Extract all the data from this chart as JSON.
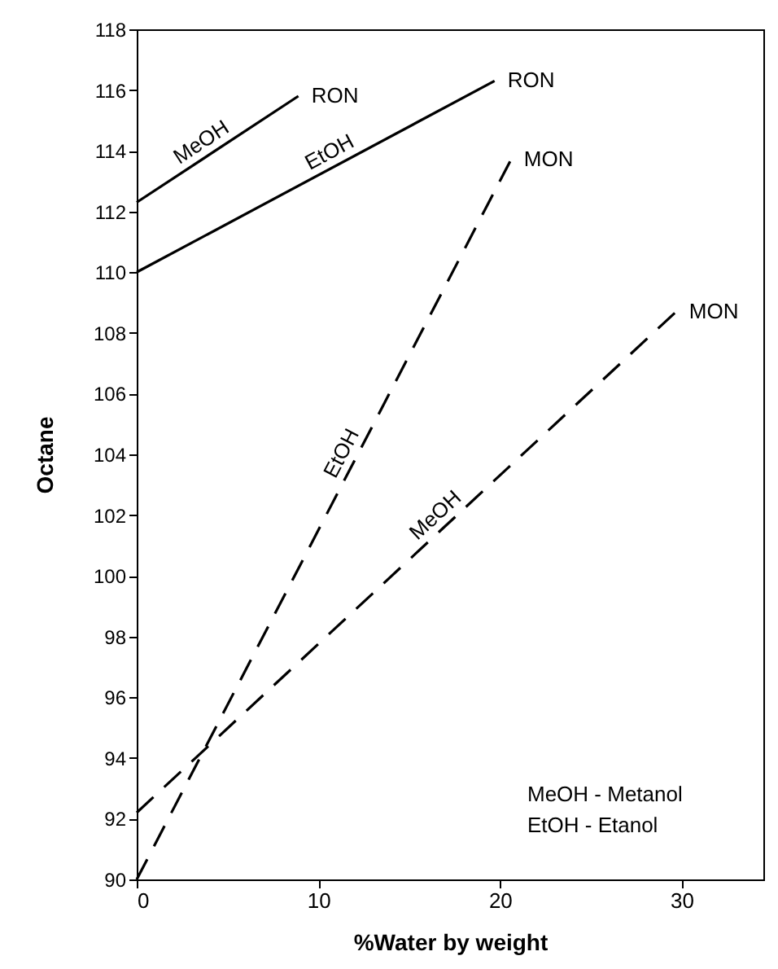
{
  "chart_data": {
    "type": "line",
    "xlabel": "%Water by weight",
    "ylabel": "Octane",
    "xlim": [
      0,
      34.5
    ],
    "ylim": [
      90,
      118
    ],
    "xticks": [
      0,
      10,
      20,
      30
    ],
    "yticks": [
      90,
      92,
      94,
      96,
      98,
      100,
      102,
      104,
      106,
      108,
      110,
      112,
      114,
      116,
      118
    ],
    "grid": false,
    "marker": "none",
    "series": [
      {
        "color": "#000000",
        "line_style": "solid",
        "x": [
          0,
          8.9
        ],
        "values": [
          112.3,
          115.8
        ]
      },
      {
        "color": "#000000",
        "line_style": "solid",
        "x": [
          0,
          19.7
        ],
        "values": [
          110,
          116.3
        ]
      },
      {
        "color": "#000000",
        "line_style": "dashed",
        "x": [
          0,
          20.6
        ],
        "values": [
          90,
          113.7
        ]
      },
      {
        "color": "#000000",
        "line_style": "dashed",
        "x": [
          0,
          29.7
        ],
        "values": [
          92.2,
          108.7
        ]
      }
    ],
    "annotations": [
      {
        "text": "RON",
        "x": 8.9,
        "y": 115.8
      },
      {
        "text": "RON",
        "x": 19.7,
        "y": 116.3
      },
      {
        "text": "MON",
        "x": 20.6,
        "y": 113.7
      },
      {
        "text": "MON",
        "x": 29.7,
        "y": 108.7
      },
      {
        "text": "MeOH",
        "x": 4,
        "y": 113.87
      },
      {
        "text": "EtOH",
        "x": 11,
        "y": 113.52
      },
      {
        "text": "EtOH",
        "x": 12,
        "y": 103.81
      },
      {
        "text": "MeOH",
        "x": 17,
        "y": 101.64
      },
      "MeOH - Metanol",
      "EtOH - Etanol"
    ]
  }
}
